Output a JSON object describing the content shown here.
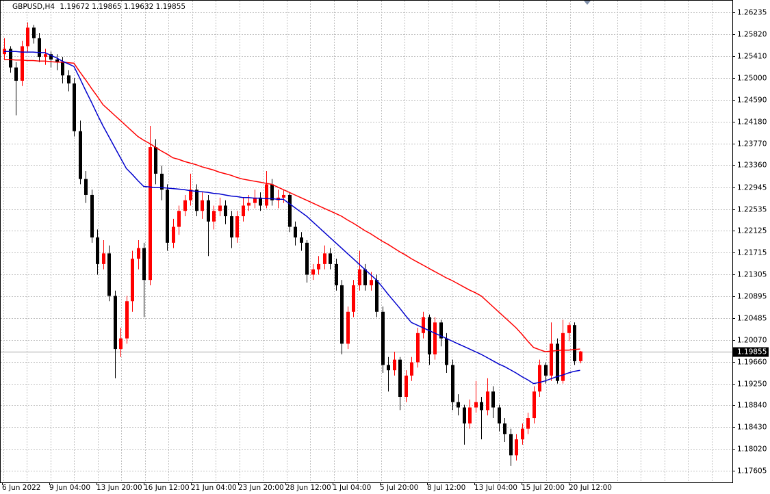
{
  "chart_data": {
    "type": "candlestick",
    "symbol": "GBPUSD,H4",
    "ohlc": [
      1.19672,
      1.19865,
      1.19632,
      1.19855
    ],
    "bull_color": "#ff0000",
    "bear_color": "#000000",
    "candles": [
      [
        1.2545,
        1.2575,
        1.2535,
        1.2555
      ],
      [
        1.2555,
        1.256,
        1.251,
        1.252
      ],
      [
        1.252,
        1.253,
        1.243,
        1.2495
      ],
      [
        1.2495,
        1.257,
        1.2485,
        1.256
      ],
      [
        1.256,
        1.2605,
        1.255,
        1.2595
      ],
      [
        1.2595,
        1.26,
        1.2565,
        1.2575
      ],
      [
        1.2575,
        1.2585,
        1.253,
        1.254
      ],
      [
        1.254,
        1.2555,
        1.2525,
        1.2545
      ],
      [
        1.2545,
        1.255,
        1.252,
        1.2535
      ],
      [
        1.2535,
        1.2545,
        1.2515,
        1.253
      ],
      [
        1.253,
        1.254,
        1.249,
        1.2505
      ],
      [
        1.2505,
        1.2515,
        1.2475,
        1.249
      ],
      [
        1.249,
        1.25,
        1.239,
        1.24
      ],
      [
        1.24,
        1.242,
        1.23,
        1.231
      ],
      [
        1.231,
        1.2325,
        1.2265,
        1.228
      ],
      [
        1.228,
        1.229,
        1.219,
        1.22
      ],
      [
        1.22,
        1.2215,
        1.213,
        1.215
      ],
      [
        1.215,
        1.2195,
        1.214,
        1.217
      ],
      [
        1.217,
        1.2185,
        1.208,
        1.209
      ],
      [
        1.209,
        1.21,
        1.1935,
        1.199
      ],
      [
        1.199,
        1.203,
        1.1975,
        1.201
      ],
      [
        1.201,
        1.209,
        1.2,
        1.208
      ],
      [
        1.208,
        1.2175,
        1.206,
        1.216
      ],
      [
        1.216,
        1.2195,
        1.214,
        1.218
      ],
      [
        1.218,
        1.219,
        1.205,
        1.212
      ],
      [
        1.212,
        1.241,
        1.211,
        1.237
      ],
      [
        1.237,
        1.2385,
        1.23,
        1.232
      ],
      [
        1.232,
        1.2335,
        1.227,
        1.229
      ],
      [
        1.229,
        1.23,
        1.2175,
        1.219
      ],
      [
        1.219,
        1.2235,
        1.218,
        1.222
      ],
      [
        1.222,
        1.226,
        1.2205,
        1.225
      ],
      [
        1.225,
        1.228,
        1.224,
        1.227
      ],
      [
        1.227,
        1.232,
        1.226,
        1.229
      ],
      [
        1.229,
        1.23,
        1.224,
        1.225
      ],
      [
        1.225,
        1.2285,
        1.2235,
        1.227
      ],
      [
        1.227,
        1.228,
        1.2165,
        1.223
      ],
      [
        1.223,
        1.226,
        1.2215,
        1.225
      ],
      [
        1.225,
        1.2275,
        1.224,
        1.226
      ],
      [
        1.226,
        1.227,
        1.2225,
        1.224
      ],
      [
        1.224,
        1.225,
        1.218,
        1.22
      ],
      [
        1.22,
        1.225,
        1.219,
        1.224
      ],
      [
        1.224,
        1.2275,
        1.223,
        1.226
      ],
      [
        1.226,
        1.228,
        1.225,
        1.2265
      ],
      [
        1.2265,
        1.229,
        1.2255,
        1.2275
      ],
      [
        1.2275,
        1.2285,
        1.225,
        1.226
      ],
      [
        1.226,
        1.2325,
        1.2255,
        1.23
      ],
      [
        1.23,
        1.231,
        1.226,
        1.227
      ],
      [
        1.227,
        1.229,
        1.2255,
        1.2275
      ],
      [
        1.2275,
        1.229,
        1.2265,
        1.228
      ],
      [
        1.228,
        1.2285,
        1.221,
        1.222
      ],
      [
        1.222,
        1.223,
        1.2185,
        1.22
      ],
      [
        1.22,
        1.221,
        1.2175,
        1.219
      ],
      [
        1.219,
        1.2195,
        1.2115,
        1.213
      ],
      [
        1.213,
        1.215,
        1.212,
        1.214
      ],
      [
        1.214,
        1.2165,
        1.213,
        1.215
      ],
      [
        1.215,
        1.2185,
        1.214,
        1.217
      ],
      [
        1.217,
        1.218,
        1.214,
        1.215
      ],
      [
        1.215,
        1.216,
        1.21,
        1.211
      ],
      [
        1.211,
        1.212,
        1.198,
        1.2
      ],
      [
        1.2,
        1.207,
        1.199,
        1.206
      ],
      [
        1.206,
        1.212,
        1.205,
        1.211
      ],
      [
        1.211,
        1.2175,
        1.21,
        1.214
      ],
      [
        1.214,
        1.215,
        1.21,
        1.211
      ],
      [
        1.211,
        1.2135,
        1.21,
        1.212
      ],
      [
        1.212,
        1.213,
        1.205,
        1.206
      ],
      [
        1.206,
        1.207,
        1.1945,
        1.196
      ],
      [
        1.196,
        1.1975,
        1.191,
        1.195
      ],
      [
        1.195,
        1.1985,
        1.194,
        1.197
      ],
      [
        1.197,
        1.1975,
        1.1875,
        1.19
      ],
      [
        1.19,
        1.195,
        1.189,
        1.194
      ],
      [
        1.194,
        1.1975,
        1.193,
        1.1965
      ],
      [
        1.1965,
        1.203,
        1.1955,
        1.202
      ],
      [
        1.202,
        1.206,
        1.201,
        1.205
      ],
      [
        1.205,
        1.2055,
        1.196,
        1.198
      ],
      [
        1.198,
        1.205,
        1.197,
        1.204
      ],
      [
        1.204,
        1.2045,
        1.1995,
        1.201
      ],
      [
        1.201,
        1.202,
        1.1945,
        1.196
      ],
      [
        1.196,
        1.197,
        1.1875,
        1.189
      ],
      [
        1.189,
        1.1905,
        1.1865,
        1.188
      ],
      [
        1.188,
        1.1885,
        1.181,
        1.185
      ],
      [
        1.185,
        1.1895,
        1.184,
        1.188
      ],
      [
        1.188,
        1.193,
        1.187,
        1.189
      ],
      [
        1.189,
        1.19,
        1.182,
        1.1875
      ],
      [
        1.1875,
        1.1935,
        1.1865,
        1.191
      ],
      [
        1.191,
        1.192,
        1.186,
        1.188
      ],
      [
        1.188,
        1.1885,
        1.1835,
        1.185
      ],
      [
        1.185,
        1.186,
        1.1815,
        1.183
      ],
      [
        1.183,
        1.184,
        1.177,
        1.179
      ],
      [
        1.179,
        1.183,
        1.178,
        1.182
      ],
      [
        1.182,
        1.185,
        1.181,
        1.184
      ],
      [
        1.184,
        1.187,
        1.183,
        1.186
      ],
      [
        1.186,
        1.192,
        1.185,
        1.191
      ],
      [
        1.191,
        1.197,
        1.19,
        1.196
      ],
      [
        1.196,
        1.1965,
        1.1925,
        1.194
      ],
      [
        1.194,
        1.204,
        1.193,
        1.2
      ],
      [
        1.2,
        1.201,
        1.1925,
        1.193
      ],
      [
        1.193,
        1.2045,
        1.1925,
        1.202
      ],
      [
        1.202,
        1.204,
        1.2005,
        1.2035
      ],
      [
        1.2035,
        1.204,
        1.196,
        1.1967
      ],
      [
        1.19672,
        1.19865,
        1.19632,
        1.19855
      ]
    ],
    "series": [
      {
        "color": "#ff0000",
        "values": [
          1.2535,
          1.2535,
          1.2534,
          1.2534,
          1.2533,
          1.2533,
          1.2532,
          1.2532,
          1.2531,
          1.253,
          1.253,
          1.2529,
          1.2528,
          1.2512,
          1.2497,
          1.2481,
          1.2466,
          1.245,
          1.244,
          1.243,
          1.242,
          1.241,
          1.24,
          1.239,
          1.2383,
          1.2377,
          1.237,
          1.2363,
          1.2357,
          1.235,
          1.2347,
          1.2343,
          1.234,
          1.2337,
          1.2333,
          1.233,
          1.2327,
          1.2323,
          1.232,
          1.2317,
          1.2313,
          1.231,
          1.2308,
          1.2306,
          1.2304,
          1.2302,
          1.23,
          1.2295,
          1.229,
          1.2285,
          1.228,
          1.2275,
          1.227,
          1.2265,
          1.226,
          1.2255,
          1.225,
          1.2245,
          1.224,
          1.2233,
          1.2227,
          1.222,
          1.2213,
          1.2207,
          1.22,
          1.2193,
          1.2187,
          1.218,
          1.2173,
          1.2167,
          1.216,
          1.2154,
          1.2148,
          1.2142,
          1.2136,
          1.213,
          1.2124,
          1.2119,
          1.2113,
          1.2107,
          1.2101,
          1.2096,
          1.209,
          1.208,
          1.207,
          1.206,
          1.205,
          1.204,
          1.203,
          1.2018,
          1.2005,
          1.1993,
          1.1989,
          1.1985,
          1.1986,
          1.1987,
          1.1988,
          1.1988,
          1.1989,
          1.199
        ]
      },
      {
        "color": "#0000cd",
        "values": [
          1.255,
          1.255,
          1.255,
          1.2549,
          1.2549,
          1.2549,
          1.2548,
          1.2548,
          1.2543,
          1.2538,
          1.2532,
          1.2527,
          1.2522,
          1.25,
          1.2477,
          1.2455,
          1.2432,
          1.241,
          1.239,
          1.237,
          1.235,
          1.233,
          1.2319,
          1.2307,
          1.2296,
          1.2295,
          1.2294,
          1.2294,
          1.2293,
          1.2292,
          1.2291,
          1.229,
          1.2288,
          1.2287,
          1.2286,
          1.2285,
          1.2283,
          1.2282,
          1.228,
          1.2278,
          1.2277,
          1.2275,
          1.2275,
          1.2274,
          1.2274,
          1.2273,
          1.2273,
          1.2272,
          1.2272,
          1.2264,
          1.2256,
          1.2248,
          1.224,
          1.223,
          1.222,
          1.221,
          1.22,
          1.219,
          1.218,
          1.217,
          1.216,
          1.215,
          1.214,
          1.213,
          1.212,
          1.2107,
          1.2093,
          1.208,
          1.2067,
          1.2053,
          1.204,
          1.2035,
          1.203,
          1.2025,
          1.202,
          1.2015,
          1.201,
          1.2005,
          1.2,
          1.1995,
          1.199,
          1.1985,
          1.198,
          1.1974,
          1.1968,
          1.1962,
          1.1957,
          1.1951,
          1.1945,
          1.1938,
          1.1932,
          1.1925,
          1.1927,
          1.193,
          1.1934,
          1.1938,
          1.1941,
          1.1945,
          1.1948,
          1.195
        ]
      }
    ],
    "last_price": 1.19855,
    "ylim": [
      1.1739,
      1.2647
    ],
    "yticks": [
      1.26235,
      {
        "value": 1.2582,
        "label": "1.25820"
      },
      {
        "value": 1.2541,
        "label": "1.25410"
      },
      {
        "value": 1.25,
        "label": "1.25000"
      },
      {
        "value": 1.2459,
        "label": "1.24590"
      },
      {
        "value": 1.2418,
        "label": "1.24180"
      },
      {
        "value": 1.2377,
        "label": "1.23770"
      },
      {
        "value": 1.2336,
        "label": "1.23360"
      },
      1.22945,
      1.22535,
      1.22125,
      1.21715,
      1.21305,
      1.20895,
      1.20485,
      {
        "value": 1.2007,
        "label": "1.20070"
      },
      {
        "value": 1.1966,
        "label": "1.19660"
      },
      {
        "value": 1.1925,
        "label": "1.19250"
      },
      {
        "value": 1.1884,
        "label": "1.18840"
      },
      {
        "value": 1.1843,
        "label": "1.18430"
      },
      {
        "value": 1.1802,
        "label": "1.18020"
      },
      1.17605
    ],
    "xticks": [
      "6 Jun 2022",
      "9 Jun 04:00",
      "13 Jun 20:00",
      "16 Jun 12:00",
      "21 Jun 04:00",
      "23 Jun 20:00",
      "28 Jun 12:00",
      "1 Jul 04:00",
      "5 Jul 20:00",
      "8 Jul 12:00",
      "13 Jul 04:00",
      "15 Jul 20:00",
      "20 Jul 12:00"
    ],
    "grid": true
  }
}
